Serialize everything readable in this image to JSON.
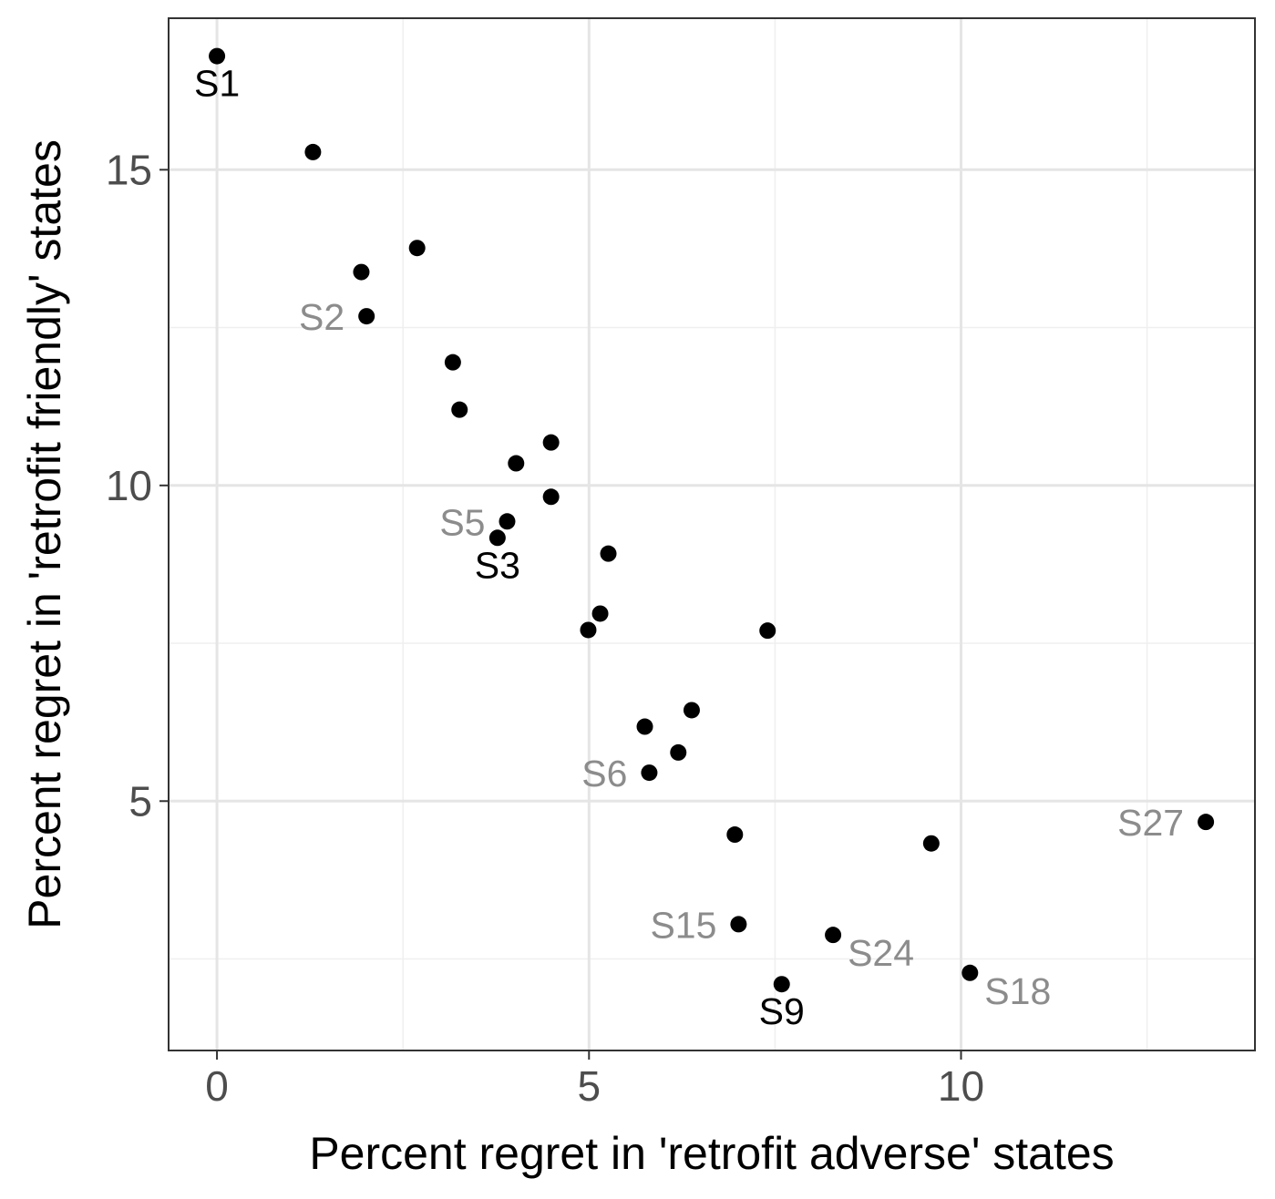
{
  "chart_data": {
    "type": "scatter",
    "xlabel": "Percent regret in 'retrofit adverse' states",
    "ylabel": "Percent regret in 'retrofit friendly' states",
    "xlim": [
      -0.65,
      13.95
    ],
    "ylim": [
      1.05,
      17.4
    ],
    "x_ticks": [
      0,
      5,
      10
    ],
    "x_tick_labels": [
      "0",
      "5",
      "10"
    ],
    "y_ticks": [
      5,
      10,
      15
    ],
    "y_tick_labels": [
      "5",
      "10",
      "15"
    ],
    "x_minor": [
      2.5,
      7.5,
      12.5
    ],
    "y_minor": [
      2.5,
      7.5,
      12.5
    ],
    "grid": true,
    "point_color": "#000000",
    "label_colors": {
      "dark": "#000000",
      "gray": "#8c8c8c"
    },
    "points": [
      {
        "x": 0.0,
        "y": 16.8,
        "label": "S1",
        "label_color": "dark",
        "label_pos": "below"
      },
      {
        "x": 1.29,
        "y": 15.28
      },
      {
        "x": 1.94,
        "y": 13.38
      },
      {
        "x": 2.69,
        "y": 13.76
      },
      {
        "x": 2.01,
        "y": 12.68,
        "label": "S2",
        "label_color": "gray",
        "label_pos": "left"
      },
      {
        "x": 3.17,
        "y": 11.95
      },
      {
        "x": 3.26,
        "y": 11.2
      },
      {
        "x": 4.02,
        "y": 10.35
      },
      {
        "x": 4.49,
        "y": 10.68
      },
      {
        "x": 4.49,
        "y": 9.82
      },
      {
        "x": 3.9,
        "y": 9.43,
        "label": "S5",
        "label_color": "gray",
        "label_pos": "left"
      },
      {
        "x": 3.77,
        "y": 9.17,
        "label": "S3",
        "label_color": "dark",
        "label_pos": "below"
      },
      {
        "x": 5.26,
        "y": 8.92
      },
      {
        "x": 5.15,
        "y": 7.97
      },
      {
        "x": 4.99,
        "y": 7.71
      },
      {
        "x": 7.4,
        "y": 7.7
      },
      {
        "x": 6.38,
        "y": 6.44
      },
      {
        "x": 5.75,
        "y": 6.18
      },
      {
        "x": 6.2,
        "y": 5.77
      },
      {
        "x": 5.81,
        "y": 5.45,
        "label": "S6",
        "label_color": "gray",
        "label_pos": "left"
      },
      {
        "x": 6.96,
        "y": 4.47
      },
      {
        "x": 9.6,
        "y": 4.33
      },
      {
        "x": 13.29,
        "y": 4.67,
        "label": "S27",
        "label_color": "gray",
        "label_pos": "left"
      },
      {
        "x": 7.01,
        "y": 3.05,
        "label": "S15",
        "label_color": "gray",
        "label_pos": "left"
      },
      {
        "x": 8.28,
        "y": 2.88,
        "label": "S24",
        "label_color": "gray",
        "label_pos": "below-right"
      },
      {
        "x": 10.12,
        "y": 2.28,
        "label": "S18",
        "label_color": "gray",
        "label_pos": "below-right"
      },
      {
        "x": 7.59,
        "y": 2.1,
        "label": "S9",
        "label_color": "dark",
        "label_pos": "below"
      }
    ]
  }
}
